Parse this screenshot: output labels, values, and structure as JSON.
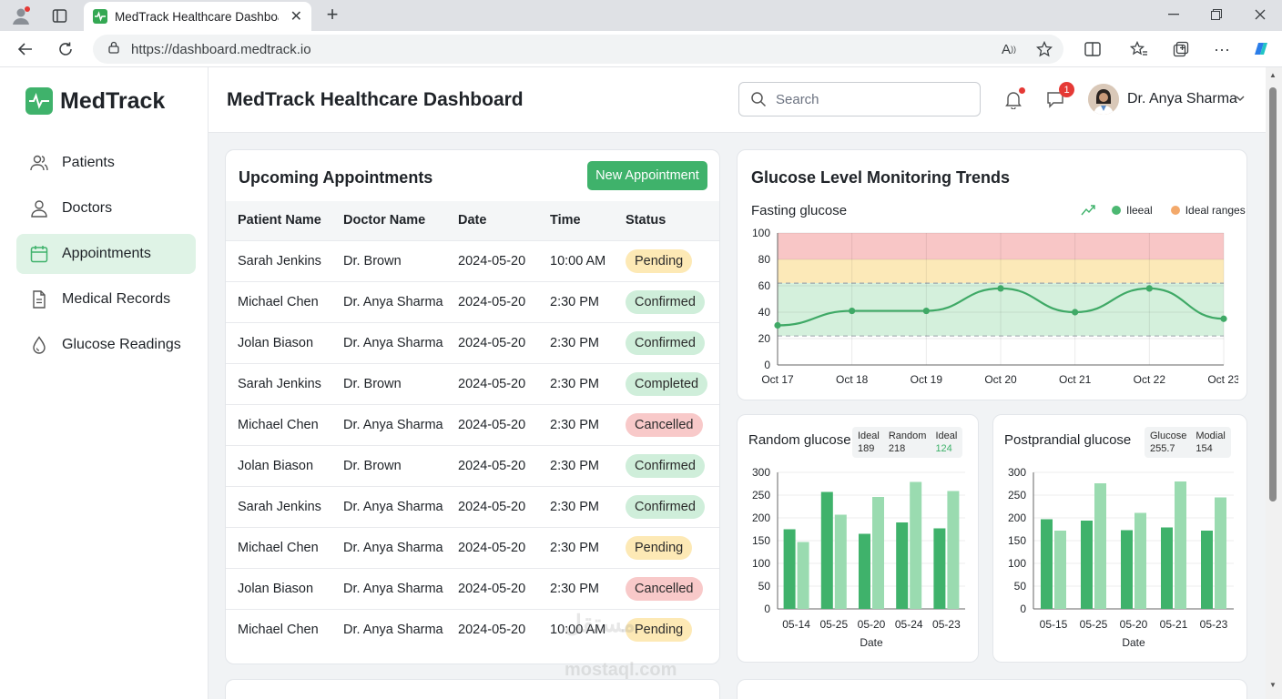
{
  "browser": {
    "tab_title": "MedTrack Healthcare Dashboard",
    "url": "https://dashboard.medtrack.io"
  },
  "app": {
    "brand": "MedTrack",
    "page_title": "MedTrack Healthcare Dashboard",
    "accent": "#3fb26b"
  },
  "sidebar": {
    "items": [
      {
        "label": "Patients",
        "icon": "users-icon"
      },
      {
        "label": "Doctors",
        "icon": "user-icon"
      },
      {
        "label": "Appointments",
        "icon": "calendar-icon",
        "active": true
      },
      {
        "label": "Medical Records",
        "icon": "document-icon"
      },
      {
        "label": "Glucose Readings",
        "icon": "drop-icon"
      }
    ]
  },
  "header": {
    "search_placeholder": "Search",
    "messages_count": "1",
    "user_name": "Dr. Anya Sharma"
  },
  "appointments": {
    "title": "Upcoming Appointments",
    "new_button": "New Appointment",
    "columns": [
      "Patient Name",
      "Doctor Name",
      "Date",
      "Time",
      "Status"
    ],
    "rows": [
      {
        "patient": "Sarah Jenkins",
        "doctor": "Dr. Brown",
        "date": "2024-05-20",
        "time": "10:00 AM",
        "status": "Pending"
      },
      {
        "patient": "Michael Chen",
        "doctor": "Dr. Anya Sharma",
        "date": "2024-05-20",
        "time": "2:30 PM",
        "status": "Confirmed"
      },
      {
        "patient": "Jolan Biason",
        "doctor": "Dr. Anya Sharma",
        "date": "2024-05-20",
        "time": "2:30 PM",
        "status": "Confirmed"
      },
      {
        "patient": "Sarah Jenkins",
        "doctor": "Dr. Brown",
        "date": "2024-05-20",
        "time": "2:30 PM",
        "status": "Completed"
      },
      {
        "patient": "Michael Chen",
        "doctor": "Dr. Anya Sharma",
        "date": "2024-05-20",
        "time": "2:30 PM",
        "status": "Cancelled"
      },
      {
        "patient": "Jolan Biason",
        "doctor": "Dr. Brown",
        "date": "2024-05-20",
        "time": "2:30 PM",
        "status": "Confirmed"
      },
      {
        "patient": "Sarah Jenkins",
        "doctor": "Dr. Anya Sharma",
        "date": "2024-05-20",
        "time": "2:30 PM",
        "status": "Confirmed"
      },
      {
        "patient": "Michael Chen",
        "doctor": "Dr. Anya Sharma",
        "date": "2024-05-20",
        "time": "2:30 PM",
        "status": "Pending"
      },
      {
        "patient": "Jolan Biason",
        "doctor": "Dr. Anya Sharma",
        "date": "2024-05-20",
        "time": "2:30 PM",
        "status": "Cancelled"
      },
      {
        "patient": "Michael Chen",
        "doctor": "Dr. Anya Sharma",
        "date": "2024-05-20",
        "time": "10:00 AM",
        "status": "Pending"
      }
    ]
  },
  "glucose": {
    "title": "Glucose Level Monitoring Trends"
  },
  "watermark": {
    "arabic": "مستقل",
    "latin": "mostaql.com"
  },
  "chart_data": [
    {
      "type": "line",
      "title": "Fasting glucose",
      "legend": [
        "Ileeal",
        "Ideal ranges"
      ],
      "categories": [
        "Oct 17",
        "Oct 18",
        "Oct 19",
        "Oct 20",
        "Oct 21",
        "Oct 22",
        "Oct 23"
      ],
      "series": [
        {
          "name": "Ileeal",
          "values": [
            30,
            41,
            41,
            58,
            40,
            58,
            35
          ]
        }
      ],
      "bands": [
        {
          "from": 80,
          "to": 100,
          "color": "#f8c6c6"
        },
        {
          "from": 62,
          "to": 80,
          "color": "#fce9b8"
        },
        {
          "from": 22,
          "to": 62,
          "color": "#d4f0dc"
        }
      ],
      "yticks": [
        0,
        20,
        40,
        60,
        80,
        100
      ],
      "ylim": [
        0,
        100
      ],
      "grid": true
    },
    {
      "type": "bar",
      "title": "Random glucose",
      "stats": [
        {
          "label": "Ideal",
          "value": "189"
        },
        {
          "label": "Random",
          "value": "218"
        },
        {
          "label": "Ideal",
          "value": "124"
        }
      ],
      "categories": [
        "05-14",
        "05-25",
        "05-20",
        "05-24",
        "05-23"
      ],
      "series": [
        {
          "values": [
            175,
            257,
            165,
            190,
            177
          ]
        },
        {
          "values": [
            147,
            207,
            246,
            279,
            259
          ]
        }
      ],
      "xlabel": "Date",
      "yticks": [
        0,
        50,
        100,
        150,
        200,
        250,
        300
      ],
      "ylim": [
        0,
        300
      ]
    },
    {
      "type": "bar",
      "title": "Postprandial glucose",
      "stats": [
        {
          "label": "Glucose",
          "value": "255.7"
        },
        {
          "label": "Modial",
          "value": "154"
        }
      ],
      "categories": [
        "05-15",
        "05-25",
        "05-20",
        "05-21",
        "05-23"
      ],
      "series": [
        {
          "values": [
            197,
            194,
            173,
            179,
            172
          ]
        },
        {
          "values": [
            172,
            276,
            211,
            280,
            245
          ]
        }
      ],
      "xlabel": "Date",
      "yticks": [
        0,
        50,
        100,
        150,
        200,
        250,
        300
      ],
      "ylim": [
        0,
        300
      ]
    }
  ]
}
